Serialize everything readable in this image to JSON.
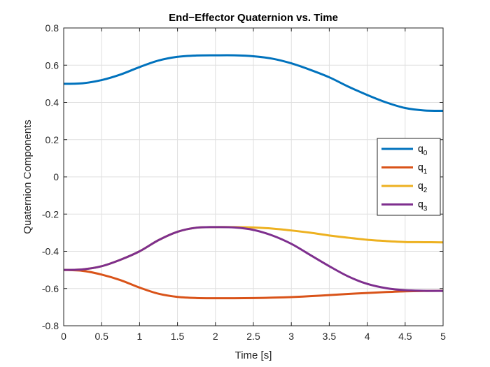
{
  "chart_data": {
    "type": "line",
    "title": "End−Effector Quaternion vs. Time",
    "xlabel": "Time [s]",
    "ylabel": "Quaternion Components",
    "xlim": [
      0,
      5
    ],
    "ylim": [
      -0.8,
      0.8
    ],
    "xticks": [
      0,
      0.5,
      1,
      1.5,
      2,
      2.5,
      3,
      3.5,
      4,
      4.5,
      5
    ],
    "xtick_labels": [
      "0",
      "0.5",
      "1",
      "1.5",
      "2",
      "2.5",
      "3",
      "3.5",
      "4",
      "4.5",
      "5"
    ],
    "yticks": [
      -0.8,
      -0.6,
      -0.4,
      -0.2,
      0,
      0.2,
      0.4,
      0.6,
      0.8
    ],
    "ytick_labels": [
      "-0.8",
      "-0.6",
      "-0.4",
      "-0.2",
      "0",
      "0.2",
      "0.4",
      "0.6",
      "0.8"
    ],
    "grid": true,
    "legend_position": "right",
    "x": [
      0,
      0.25,
      0.5,
      0.75,
      1,
      1.25,
      1.5,
      1.75,
      2,
      2.25,
      2.5,
      2.75,
      3,
      3.25,
      3.5,
      3.75,
      4,
      4.25,
      4.5,
      4.75,
      5
    ],
    "series": [
      {
        "name_base": "q",
        "name_sub": "0",
        "color": "#0072bd",
        "values": [
          0.5,
          0.503,
          0.52,
          0.55,
          0.59,
          0.625,
          0.645,
          0.652,
          0.653,
          0.653,
          0.648,
          0.635,
          0.61,
          0.575,
          0.535,
          0.485,
          0.44,
          0.4,
          0.37,
          0.357,
          0.355
        ]
      },
      {
        "name_base": "q",
        "name_sub": "1",
        "color": "#d95319",
        "values": [
          -0.5,
          -0.505,
          -0.525,
          -0.555,
          -0.595,
          -0.628,
          -0.645,
          -0.651,
          -0.652,
          -0.652,
          -0.651,
          -0.649,
          -0.646,
          -0.641,
          -0.635,
          -0.629,
          -0.624,
          -0.619,
          -0.615,
          -0.613,
          -0.612
        ]
      },
      {
        "name_base": "q",
        "name_sub": "2",
        "color": "#edb120",
        "values": [
          -0.5,
          -0.497,
          -0.48,
          -0.445,
          -0.4,
          -0.34,
          -0.295,
          -0.273,
          -0.27,
          -0.27,
          -0.272,
          -0.278,
          -0.288,
          -0.3,
          -0.315,
          -0.327,
          -0.338,
          -0.345,
          -0.35,
          -0.351,
          -0.352
        ]
      },
      {
        "name_base": "q",
        "name_sub": "3",
        "color": "#7e2f8e",
        "values": [
          -0.5,
          -0.497,
          -0.48,
          -0.445,
          -0.4,
          -0.34,
          -0.295,
          -0.273,
          -0.27,
          -0.272,
          -0.285,
          -0.315,
          -0.36,
          -0.42,
          -0.48,
          -0.535,
          -0.575,
          -0.598,
          -0.609,
          -0.612,
          -0.613
        ]
      }
    ]
  }
}
